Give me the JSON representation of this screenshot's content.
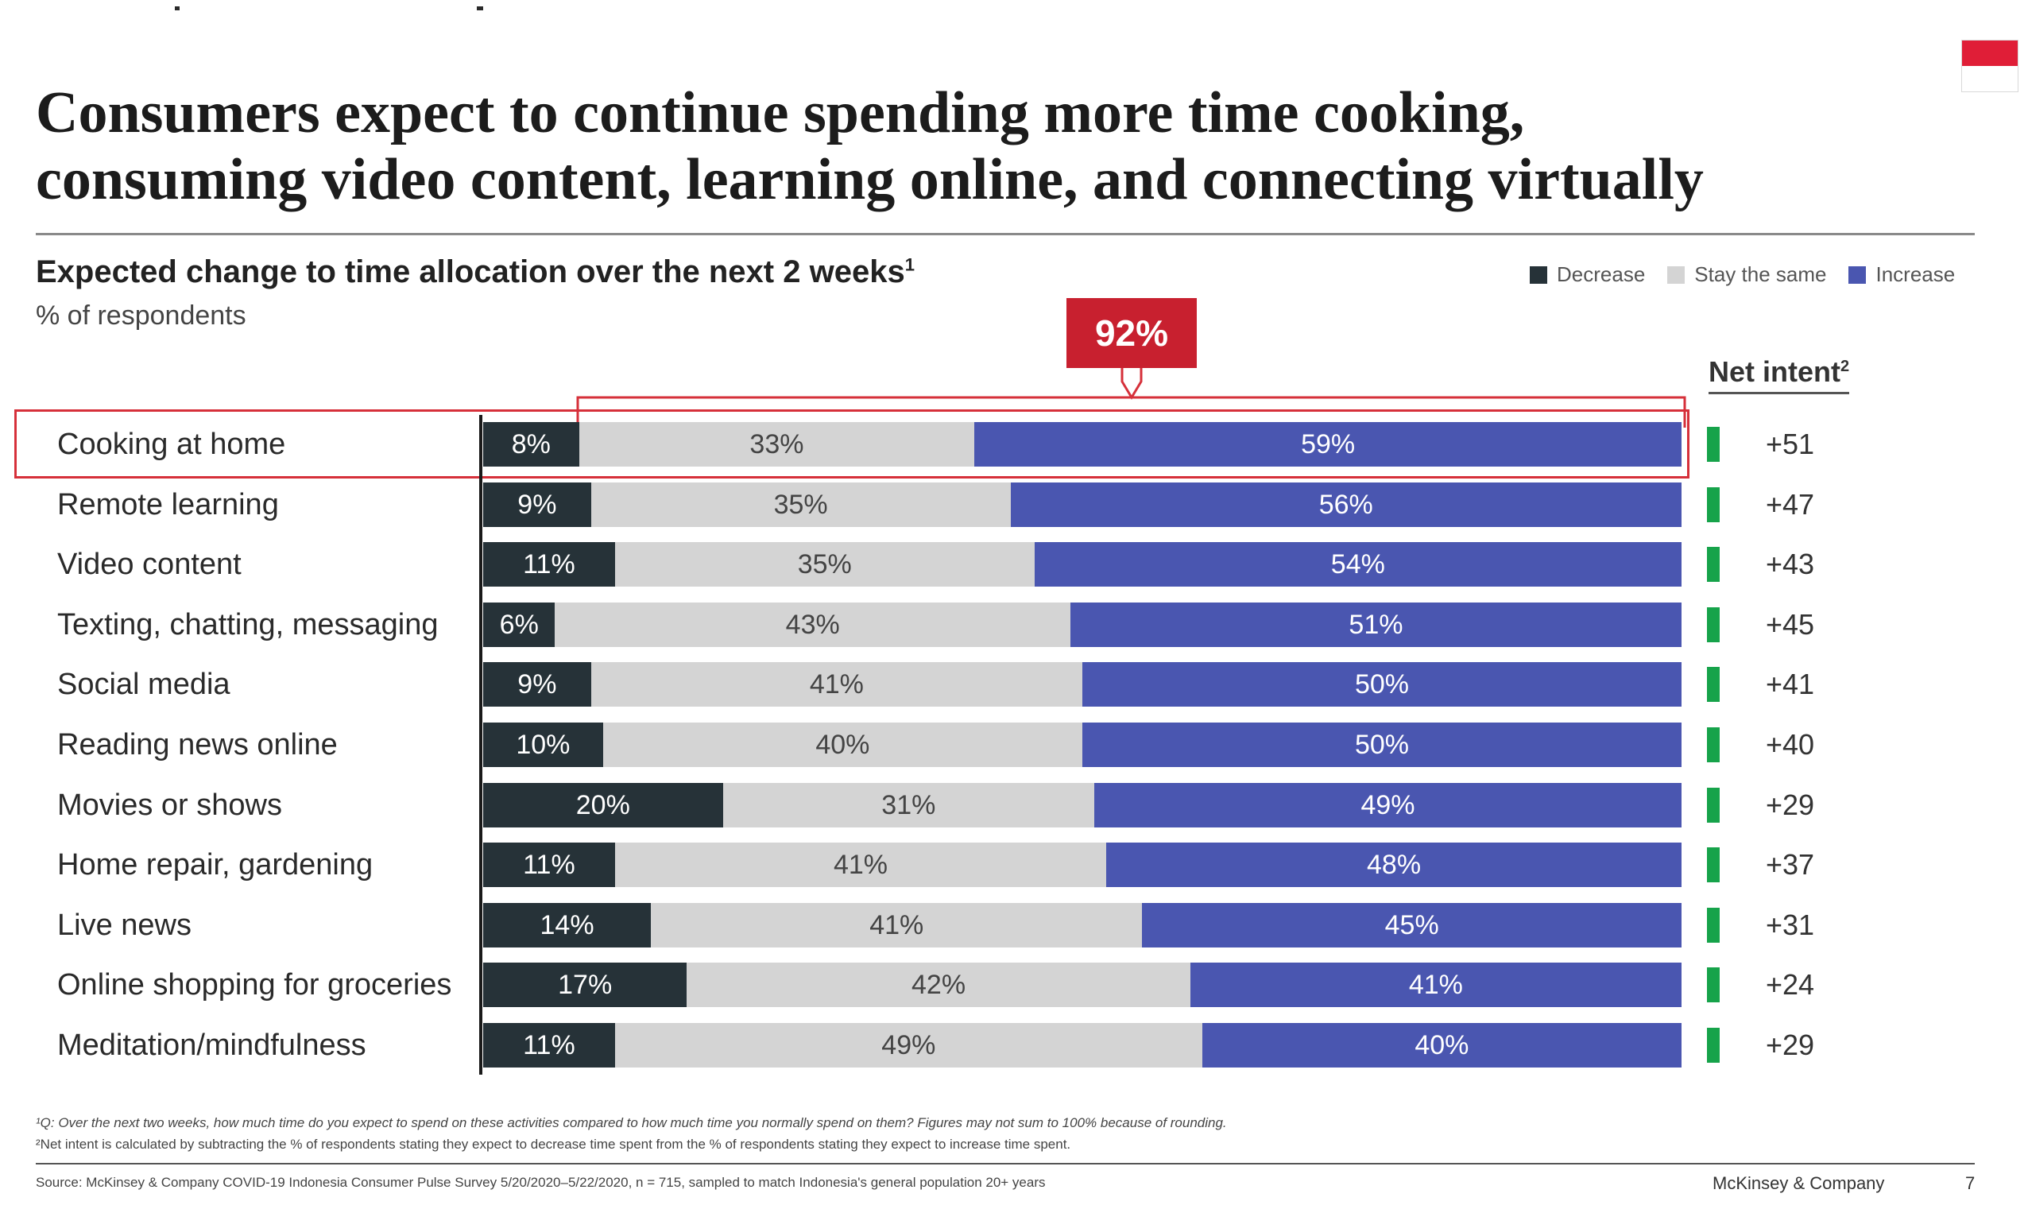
{
  "title": {
    "line1": "Consumers expect to continue spending more time cooking,",
    "line2": "consuming video content, learning online, and connecting virtually"
  },
  "subtitle": "Expected change to time allocation over the next 2 weeks",
  "subtitle_marker": "1",
  "unit": "% of respondents",
  "legend": [
    {
      "label": "Decrease",
      "color": "#263238"
    },
    {
      "label": "Stay the same",
      "color": "#d4d4d4"
    },
    {
      "label": "Increase",
      "color": "#4a56b0"
    }
  ],
  "callout": {
    "label": "92%",
    "color": "#c8202f"
  },
  "net_intent": {
    "header": "Net intent",
    "marker": "2",
    "indicator_color": "#16a34a"
  },
  "chart_data": {
    "type": "bar",
    "orientation": "horizontal",
    "stacked": true,
    "categories": [
      "Cooking at home",
      "Remote learning",
      "Video content",
      "Texting, chatting, messaging",
      "Social media",
      "Reading news online",
      "Movies or shows",
      "Home repair, gardening",
      "Live news",
      "Online shopping for groceries",
      "Meditation/mindfulness"
    ],
    "series": [
      {
        "name": "Decrease",
        "values": [
          8,
          9,
          11,
          6,
          9,
          10,
          20,
          11,
          14,
          17,
          11
        ],
        "labels": [
          "8%",
          "9%",
          "11%",
          "6%",
          "9%",
          "10%",
          "20%",
          "11%",
          "14%",
          "17%",
          "11%"
        ]
      },
      {
        "name": "Stay the same",
        "values": [
          33,
          35,
          35,
          43,
          41,
          40,
          31,
          41,
          41,
          42,
          49
        ],
        "labels": [
          "33%",
          "35%",
          "35%",
          "43%",
          "41%",
          "40%",
          "31%",
          "41%",
          "41%",
          "42%",
          "49%"
        ]
      },
      {
        "name": "Increase",
        "values": [
          59,
          56,
          54,
          51,
          50,
          50,
          49,
          48,
          45,
          41,
          40
        ],
        "labels": [
          "59%",
          "56%",
          "54%",
          "51%",
          "50%",
          "50%",
          "49%",
          "48%",
          "45%",
          "41%",
          "40%"
        ]
      }
    ],
    "net_intent": [
      "+51",
      "+47",
      "+43",
      "+45",
      "+41",
      "+40",
      "+29",
      "+37",
      "+31",
      "+24",
      "+29"
    ],
    "highlight": {
      "category": "Cooking at home",
      "label": "92%"
    },
    "legend_position": "top-right"
  },
  "footnotes": {
    "note1": "¹Q: Over the next two weeks, how much time do you expect to spend on these activities compared to how much time you normally spend on them? Figures may not sum to 100% because of rounding.",
    "note2": "²Net intent is calculated by subtracting the % of respondents stating they expect to decrease time spent from the % of respondents stating they expect to increase time spent.",
    "source": "Source: McKinsey & Company COVID-19 Indonesia Consumer Pulse Survey 5/20/2020–5/22/2020, n = 715, sampled to match Indonesia's general population 20+ years"
  },
  "brand": "McKinsey & Company",
  "page_number": "7"
}
